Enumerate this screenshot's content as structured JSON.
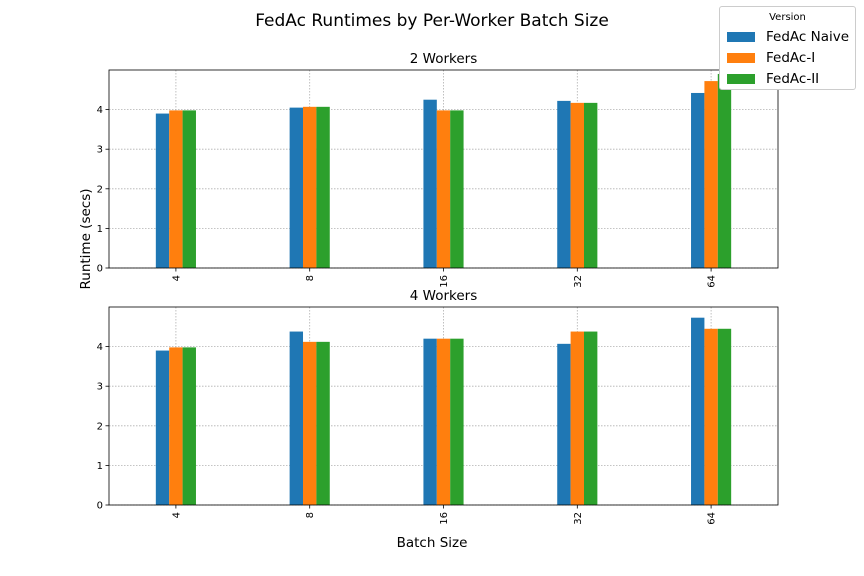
{
  "figure": {
    "title": "FedAc Runtimes by Per-Worker Batch Size",
    "xlabel": "Batch Size",
    "ylabel": "Runtime (secs)"
  },
  "legend": {
    "title": "Version",
    "placement": "top-right",
    "items": [
      {
        "label": "FedAc Naive",
        "color": "#1f77b4"
      },
      {
        "label": "FedAc-I",
        "color": "#ff7f0e"
      },
      {
        "label": "FedAc-II",
        "color": "#2ca02c"
      }
    ]
  },
  "chart_data": [
    {
      "type": "bar",
      "title": "2 Workers",
      "categories": [
        "4",
        "8",
        "16",
        "32",
        "64"
      ],
      "ylim": [
        0,
        5
      ],
      "yticks": [
        0,
        1,
        2,
        3,
        4
      ],
      "grid": true,
      "series": [
        {
          "name": "FedAc Naive",
          "color": "#1f77b4",
          "values": [
            3.9,
            4.05,
            4.25,
            4.22,
            4.42
          ]
        },
        {
          "name": "FedAc-I",
          "color": "#ff7f0e",
          "values": [
            3.98,
            4.07,
            3.98,
            4.17,
            4.72
          ]
        },
        {
          "name": "FedAc-II",
          "color": "#2ca02c",
          "values": [
            3.98,
            4.07,
            3.98,
            4.17,
            4.9
          ]
        }
      ]
    },
    {
      "type": "bar",
      "title": "4 Workers",
      "categories": [
        "4",
        "8",
        "16",
        "32",
        "64"
      ],
      "ylim": [
        0,
        5
      ],
      "yticks": [
        0,
        1,
        2,
        3,
        4
      ],
      "grid": true,
      "series": [
        {
          "name": "FedAc Naive",
          "color": "#1f77b4",
          "values": [
            3.9,
            4.38,
            4.2,
            4.07,
            4.73
          ]
        },
        {
          "name": "FedAc-I",
          "color": "#ff7f0e",
          "values": [
            3.98,
            4.12,
            4.2,
            4.38,
            4.45
          ]
        },
        {
          "name": "FedAc-II",
          "color": "#2ca02c",
          "values": [
            3.98,
            4.12,
            4.2,
            4.38,
            4.45
          ]
        }
      ]
    }
  ]
}
